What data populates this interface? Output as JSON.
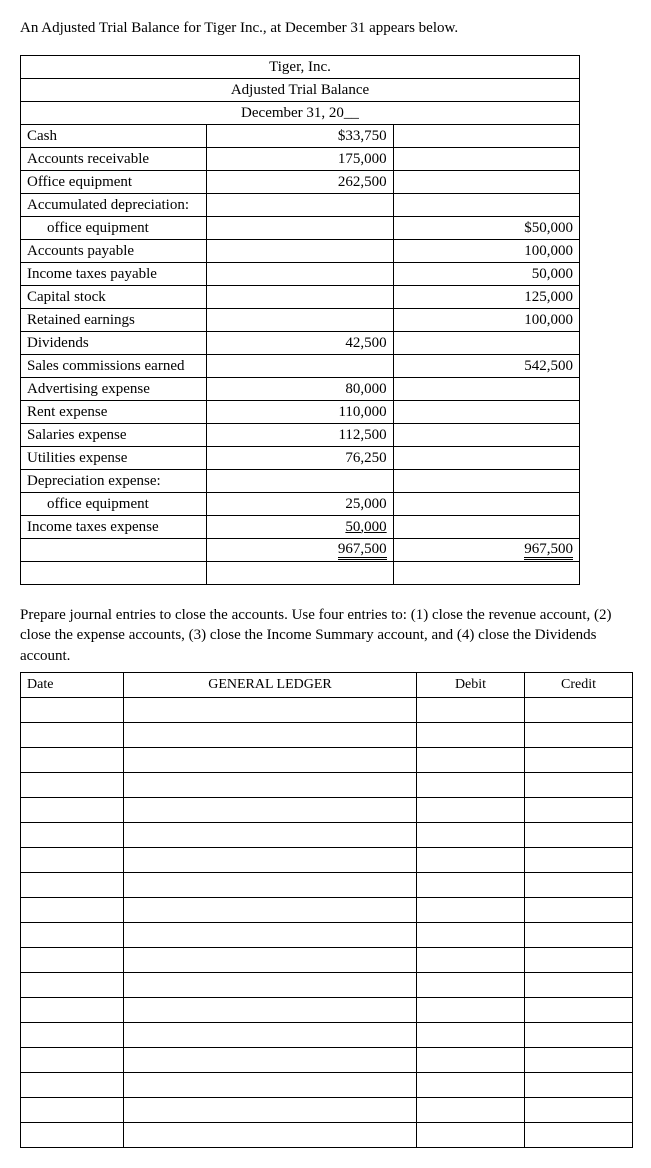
{
  "intro": "An Adjusted Trial Balance for Tiger Inc., at December 31 appears below.",
  "header": {
    "company": "Tiger, Inc.",
    "title": "Adjusted Trial Balance",
    "date": "December 31, 20__"
  },
  "rows": [
    {
      "acct": "Cash",
      "indent": false,
      "debit": "$33,750",
      "credit": ""
    },
    {
      "acct": "Accounts receivable",
      "indent": false,
      "debit": "175,000",
      "credit": ""
    },
    {
      "acct": "Office equipment",
      "indent": false,
      "debit": "262,500",
      "credit": ""
    },
    {
      "acct": "Accumulated depreciation:",
      "indent": false,
      "debit": "",
      "credit": ""
    },
    {
      "acct": "office equipment",
      "indent": true,
      "debit": "",
      "credit": "$50,000"
    },
    {
      "acct": "Accounts payable",
      "indent": false,
      "debit": "",
      "credit": "100,000"
    },
    {
      "acct": "Income taxes payable",
      "indent": false,
      "debit": "",
      "credit": "50,000"
    },
    {
      "acct": "Capital stock",
      "indent": false,
      "debit": "",
      "credit": "125,000"
    },
    {
      "acct": "Retained earnings",
      "indent": false,
      "debit": "",
      "credit": "100,000"
    },
    {
      "acct": "Dividends",
      "indent": false,
      "debit": "42,500",
      "credit": ""
    },
    {
      "acct": "Sales commissions earned",
      "indent": false,
      "debit": "",
      "credit": "542,500"
    },
    {
      "acct": "Advertising expense",
      "indent": false,
      "debit": "80,000",
      "credit": ""
    },
    {
      "acct": "Rent expense",
      "indent": false,
      "debit": "110,000",
      "credit": ""
    },
    {
      "acct": "Salaries expense",
      "indent": false,
      "debit": "112,500",
      "credit": ""
    },
    {
      "acct": "Utilities expense",
      "indent": false,
      "debit": "76,250",
      "credit": ""
    },
    {
      "acct": "Depreciation expense:",
      "indent": false,
      "debit": "",
      "credit": ""
    },
    {
      "acct": "office equipment",
      "indent": true,
      "debit": "25,000",
      "credit": ""
    },
    {
      "acct": "Income taxes expense",
      "indent": false,
      "debit": "50,000",
      "credit": "",
      "debit_underline": true
    }
  ],
  "totals": {
    "debit": "967,500",
    "credit": "967,500"
  },
  "instructions": "Prepare journal entries to close the accounts. Use four entries to: (1) close the revenue account, (2) close the expense accounts, (3) close the Income Summary account, and (4) close the Dividends account.",
  "ledger": {
    "headers": {
      "date": "Date",
      "gl": "GENERAL LEDGER",
      "debit": "Debit",
      "credit": "Credit"
    },
    "blank_rows": 18
  }
}
